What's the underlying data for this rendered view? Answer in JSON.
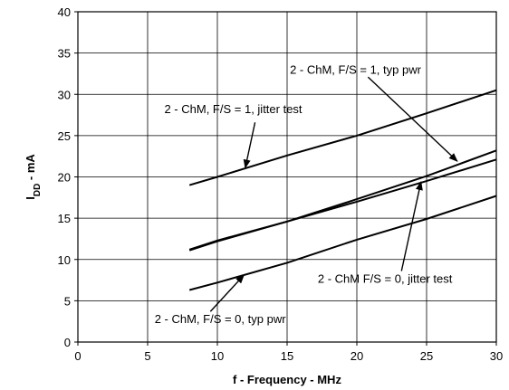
{
  "chart_data": {
    "type": "line",
    "xlabel": "f - Frequency - MHz",
    "ylabel": {
      "main": "I",
      "sub": "DD",
      "rest": " - mA"
    },
    "xlim": [
      0,
      30
    ],
    "ylim": [
      0,
      40
    ],
    "xticks": [
      0,
      5,
      10,
      15,
      20,
      25,
      30
    ],
    "yticks": [
      0,
      5,
      10,
      15,
      20,
      25,
      30,
      35,
      40
    ],
    "grid": true,
    "series": [
      {
        "name": "2 - ChM, F/S = 1, jitter test",
        "x": [
          8,
          10,
          15,
          20,
          25,
          30
        ],
        "y": [
          19,
          20,
          22.6,
          25,
          27.7,
          30.5
        ]
      },
      {
        "name": "2 - ChM, F/S = 1, typ pwr",
        "x": [
          8,
          10,
          15,
          20,
          25,
          30
        ],
        "y": [
          11.2,
          12.3,
          14.6,
          17.3,
          20.1,
          23.2
        ]
      },
      {
        "name": "2 - ChM F/S = 0, jitter test",
        "x": [
          8,
          10,
          15,
          20,
          25,
          30
        ],
        "y": [
          11.1,
          12.2,
          14.6,
          17,
          19.5,
          22.1
        ]
      },
      {
        "name": "2 - ChM, F/S = 0, typ pwr",
        "x": [
          8,
          10,
          15,
          20,
          25,
          30
        ],
        "y": [
          6.3,
          7.2,
          9.6,
          12.4,
          14.9,
          17.7
        ]
      }
    ],
    "annotations": [
      {
        "text": "2 - ChM, F/S = 1, typ pwr",
        "text_pos": [
          15.2,
          32.5
        ],
        "arrow_from": [
          20.8,
          32.1
        ],
        "arrow_to": [
          27.2,
          21.9
        ]
      },
      {
        "text": "2 - ChM, F/S = 1, jitter test",
        "text_pos": [
          6.2,
          27.7
        ],
        "arrow_from": [
          12.7,
          26.6
        ],
        "arrow_to": [
          12,
          21.1
        ]
      },
      {
        "text": "2 - ChM F/S = 0, jitter test",
        "text_pos": [
          17.2,
          7.2
        ],
        "arrow_from": [
          23.2,
          8.6
        ],
        "arrow_to": [
          24.6,
          19.4
        ]
      },
      {
        "text": "2 - ChM, F/S = 0, typ pwr",
        "text_pos": [
          5.5,
          2.3
        ],
        "arrow_from": [
          9.5,
          3.7
        ],
        "arrow_to": [
          11.9,
          8.1
        ]
      }
    ]
  }
}
